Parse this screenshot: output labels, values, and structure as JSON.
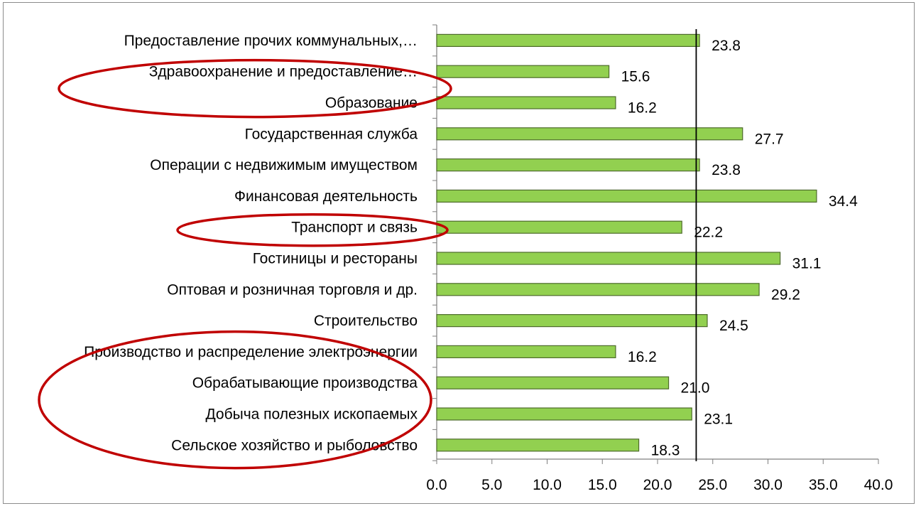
{
  "chart_data": {
    "type": "bar",
    "orientation": "horizontal",
    "categories": [
      "Предоставление прочих коммунальных,…",
      "Здравоохранение и предоставление…",
      "Образование",
      "Государственная служба",
      "Операции с недвижимым имуществом",
      "Финансовая деятельность",
      "Транспорт и связь",
      "Гостиницы и рестораны",
      "Оптовая и розничная торговля и др.",
      "Строительство",
      "Производство и распределение электроэнергии",
      "Обрабатывающие производства",
      "Добыча полезных ископаемых",
      "Сельское хозяйство и рыболовство"
    ],
    "values": [
      23.8,
      15.6,
      16.2,
      27.7,
      23.8,
      34.4,
      22.2,
      31.1,
      29.2,
      24.5,
      16.2,
      21.0,
      23.1,
      18.3
    ],
    "value_labels": [
      "23.8",
      "15.6",
      "16.2",
      "27.7",
      "23.8",
      "34.4",
      "22.2",
      "31.1",
      "29.2",
      "24.5",
      "16.2",
      "21.0",
      "23.1",
      "18.3"
    ],
    "x_ticks": [
      "0.0",
      "5.0",
      "10.0",
      "15.0",
      "20.0",
      "25.0",
      "30.0",
      "35.0",
      "40.0"
    ],
    "xlim": [
      0,
      40
    ],
    "reference_line": 23.5,
    "title": "",
    "xlabel": "",
    "ylabel": "",
    "grid": false,
    "legend": "none",
    "bar_color": "#92d050",
    "bar_edge_color": "#4e6b2b",
    "reference_line_color": "#000000",
    "highlight_color": "#c00000",
    "highlighted_groups": [
      [
        "Здравоохранение и предоставление…",
        "Образование"
      ],
      [
        "Транспорт и связь"
      ],
      [
        "Производство и распределение электроэнергии",
        "Обрабатывающие производства",
        "Добыча полезных ископаемых",
        "Сельское хозяйство и рыболовство"
      ]
    ]
  }
}
